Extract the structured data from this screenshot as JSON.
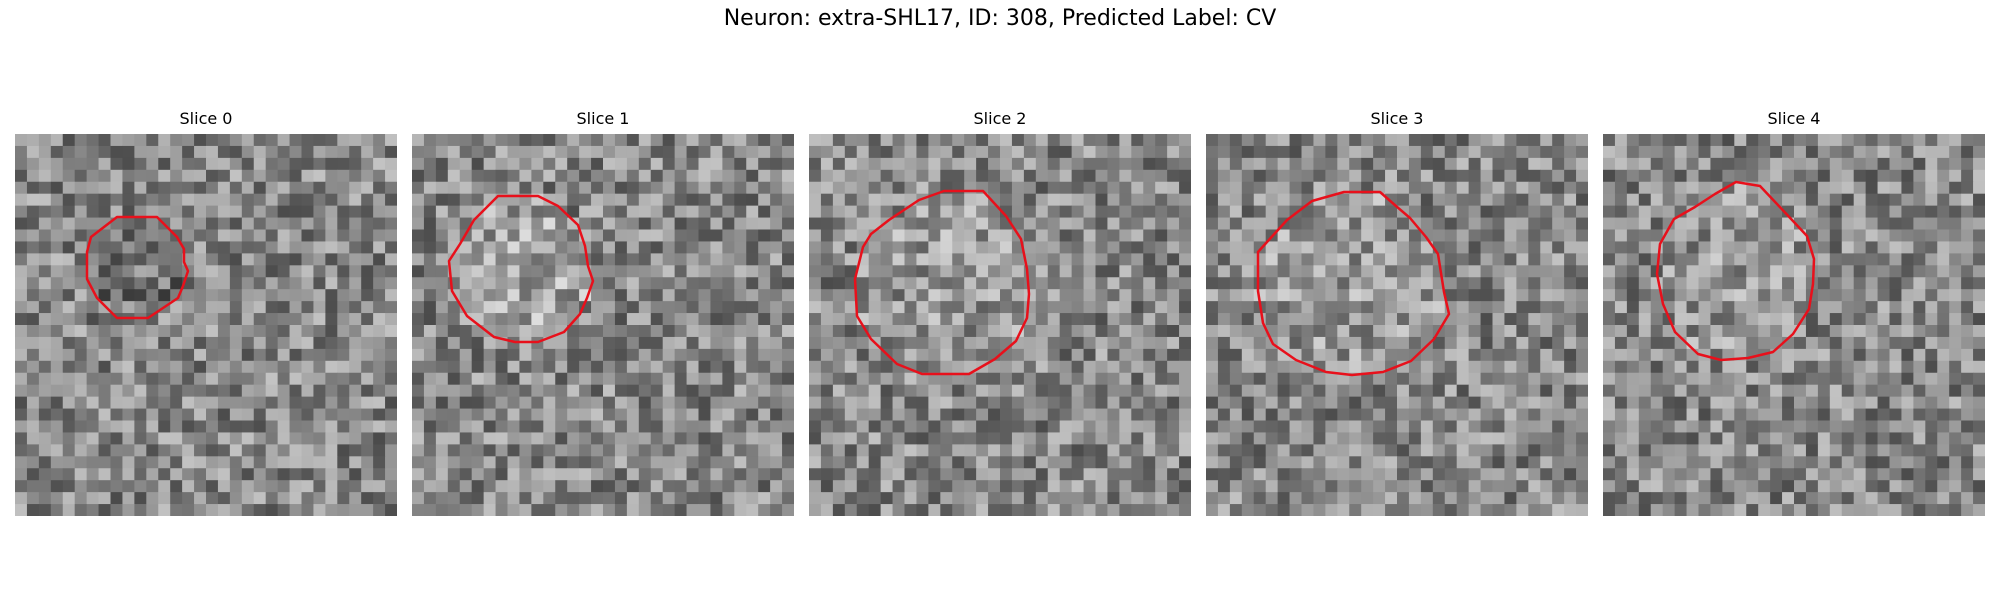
{
  "figure": {
    "title": "Neuron: extra-SHL17, ID: 308, Predicted Label: CV"
  },
  "colors": {
    "contour": "#e8101b",
    "background": "#ffffff"
  },
  "panels": [
    {
      "title": "Slice 0"
    },
    {
      "title": "Slice 1"
    },
    {
      "title": "Slice 2"
    },
    {
      "title": "Slice 3"
    },
    {
      "title": "Slice 4"
    }
  ]
}
